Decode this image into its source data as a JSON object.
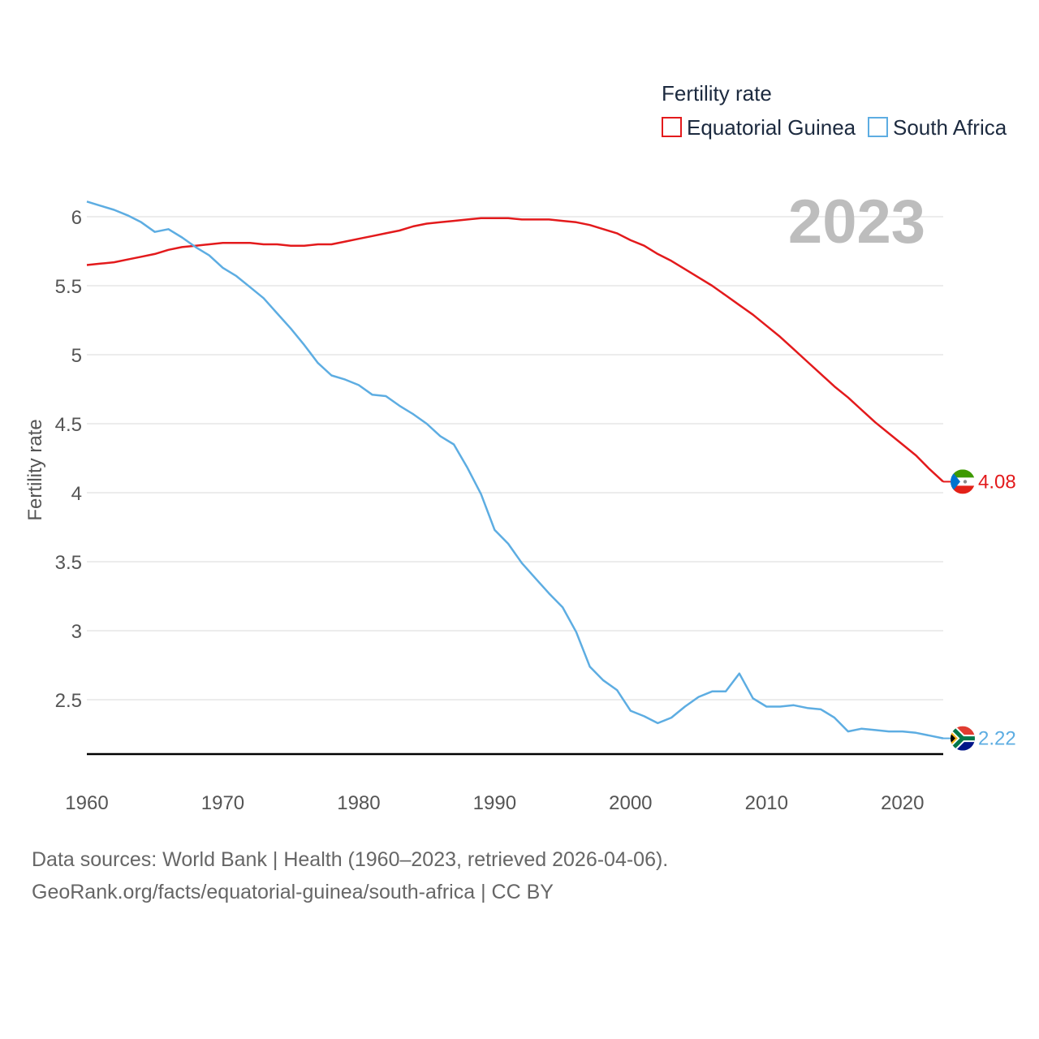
{
  "chart_data": {
    "type": "line",
    "title": "",
    "year_label": "2023",
    "xlabel": "",
    "ylabel": "Fertility rate",
    "xlim": [
      1960,
      2023
    ],
    "ylim": [
      2.1,
      6.25
    ],
    "x_ticks": [
      1960,
      1970,
      1980,
      1990,
      2000,
      2010,
      2020
    ],
    "y_ticks": [
      2.5,
      3,
      3.5,
      4,
      4.5,
      5,
      5.5,
      6
    ],
    "y_tick_labels": [
      "2.5",
      "3",
      "3.5",
      "4",
      "4.5",
      "5",
      "5.5",
      "6"
    ],
    "x_tick_labels": [
      "1960",
      "1970",
      "1980",
      "1990",
      "2000",
      "2010",
      "2020"
    ],
    "grid": true,
    "legend": {
      "title": "Fertility rate",
      "position": "top-right"
    },
    "x": [
      1960,
      1961,
      1962,
      1963,
      1964,
      1965,
      1966,
      1967,
      1968,
      1969,
      1970,
      1971,
      1972,
      1973,
      1974,
      1975,
      1976,
      1977,
      1978,
      1979,
      1980,
      1981,
      1982,
      1983,
      1984,
      1985,
      1986,
      1987,
      1988,
      1989,
      1990,
      1991,
      1992,
      1993,
      1994,
      1995,
      1996,
      1997,
      1998,
      1999,
      2000,
      2001,
      2002,
      2003,
      2004,
      2005,
      2006,
      2007,
      2008,
      2009,
      2010,
      2011,
      2012,
      2013,
      2014,
      2015,
      2016,
      2017,
      2018,
      2019,
      2020,
      2021,
      2022,
      2023
    ],
    "series": [
      {
        "name": "Equatorial Guinea",
        "color": "#e31a1c",
        "end_label": "4.08",
        "flag": "equatorial-guinea-flag-icon",
        "values": [
          5.65,
          5.66,
          5.67,
          5.69,
          5.71,
          5.73,
          5.76,
          5.78,
          5.79,
          5.8,
          5.81,
          5.81,
          5.81,
          5.8,
          5.8,
          5.79,
          5.79,
          5.8,
          5.8,
          5.82,
          5.84,
          5.86,
          5.88,
          5.9,
          5.93,
          5.95,
          5.96,
          5.97,
          5.98,
          5.99,
          5.99,
          5.99,
          5.98,
          5.98,
          5.98,
          5.97,
          5.96,
          5.94,
          5.91,
          5.88,
          5.83,
          5.79,
          5.73,
          5.68,
          5.62,
          5.56,
          5.5,
          5.43,
          5.36,
          5.29,
          5.21,
          5.13,
          5.04,
          4.95,
          4.86,
          4.77,
          4.69,
          4.6,
          4.51,
          4.43,
          4.35,
          4.27,
          4.17,
          4.08
        ]
      },
      {
        "name": "South Africa",
        "color": "#5dade2",
        "end_label": "2.22",
        "flag": "south-africa-flag-icon",
        "values": [
          6.11,
          6.08,
          6.05,
          6.01,
          5.96,
          5.89,
          5.91,
          5.85,
          5.78,
          5.72,
          5.63,
          5.57,
          5.49,
          5.41,
          5.3,
          5.19,
          5.07,
          4.94,
          4.85,
          4.82,
          4.78,
          4.71,
          4.7,
          4.63,
          4.57,
          4.5,
          4.41,
          4.35,
          4.18,
          3.99,
          3.73,
          3.63,
          3.49,
          3.38,
          3.27,
          3.17,
          2.99,
          2.74,
          2.64,
          2.57,
          2.42,
          2.38,
          2.33,
          2.37,
          2.45,
          2.52,
          2.56,
          2.56,
          2.69,
          2.51,
          2.45,
          2.45,
          2.46,
          2.44,
          2.43,
          2.37,
          2.27,
          2.29,
          2.28,
          2.27,
          2.27,
          2.26,
          2.24,
          2.22
        ]
      }
    ]
  },
  "footer": {
    "line1": "Data sources: World Bank | Health (1960–2023, retrieved 2026-04-06).",
    "line2": "GeoRank.org/facts/equatorial-guinea/south-africa | CC BY"
  }
}
